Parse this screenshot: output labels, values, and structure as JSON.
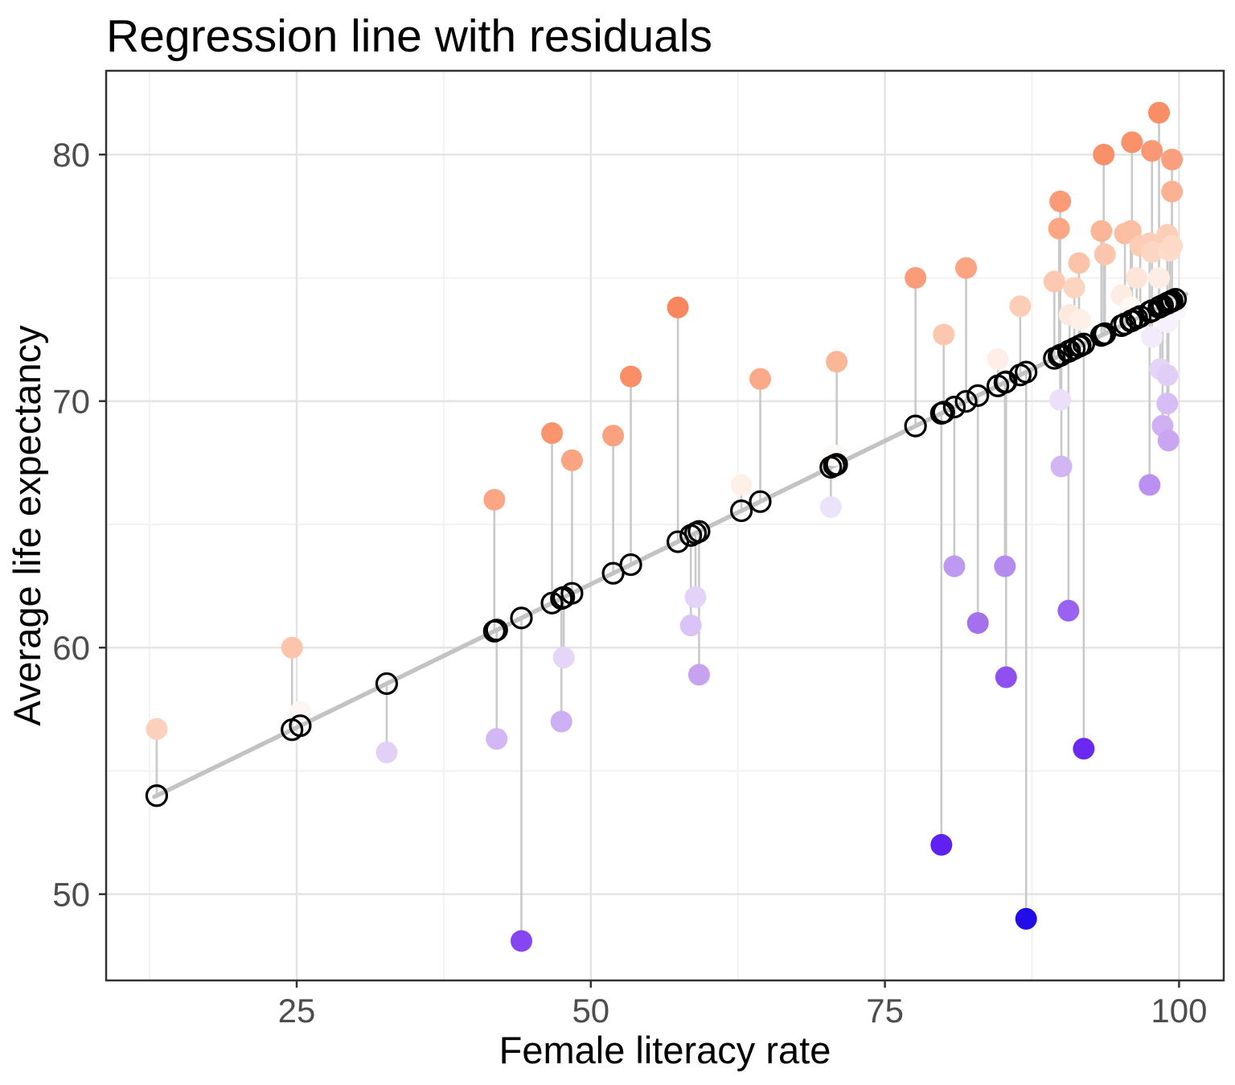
{
  "title": "Regression line with residuals",
  "x_axis": {
    "label": "Female literacy rate",
    "ticks": [
      25,
      50,
      75,
      100
    ],
    "minor_ticks": [
      12.5,
      37.5,
      62.5,
      87.5
    ],
    "range": [
      8.8,
      103.8
    ]
  },
  "y_axis": {
    "label": "Average life expectancy",
    "ticks": [
      50,
      60,
      70,
      80
    ],
    "minor_ticks": [
      55,
      65,
      75
    ],
    "range": [
      46.5,
      83.4
    ]
  },
  "palette": {
    "stem": "#c9c9c9",
    "regression_line": "#c3c3c3",
    "fitted_stroke": "#000000",
    "panel_border": "#333333",
    "grid_major": "#e4e4e4",
    "grid_minor": "#f2f2f2",
    "tick_mark": "#333333",
    "tick_label": "#4d4d4d",
    "residual_scale": [
      [
        -22.5,
        "#1e0be6"
      ],
      [
        -18.0,
        "#5a1dee"
      ],
      [
        -16.5,
        "#6a28f0"
      ],
      [
        -14.0,
        "#7d3cf1"
      ],
      [
        -12.0,
        "#8e50f0"
      ],
      [
        -10.5,
        "#9a62f0"
      ],
      [
        -9.0,
        "#a673ee"
      ],
      [
        -7.5,
        "#b58af0"
      ],
      [
        -6.0,
        "#c4a0f1"
      ],
      [
        -4.5,
        "#d2b6f4"
      ],
      [
        -3.0,
        "#e0cdf7"
      ],
      [
        -2.0,
        "#e9dcf9"
      ],
      [
        -1.0,
        "#f2ecfb"
      ],
      [
        0.0,
        "#ffffff"
      ],
      [
        1.5,
        "#fde8dd"
      ],
      [
        3.0,
        "#fccab1"
      ],
      [
        4.5,
        "#fbb091"
      ],
      [
        6.0,
        "#fa9c79"
      ],
      [
        7.5,
        "#f98e68"
      ],
      [
        9.5,
        "#f8875f"
      ]
    ]
  },
  "chart_data": {
    "type": "scatter",
    "title": "Regression line with residuals",
    "xlabel": "Female literacy rate",
    "ylabel": "Average life expectancy",
    "xlim": [
      8.8,
      103.8
    ],
    "ylim": [
      46.5,
      83.4
    ],
    "grid": true,
    "regression": {
      "intercept": 50.95,
      "slope": 0.2325,
      "x_start": 12.9,
      "x_end": 100.6
    },
    "points": [
      [
        13.1,
        56.7
      ],
      [
        24.6,
        60.0
      ],
      [
        25.3,
        57.4
      ],
      [
        32.65,
        55.75
      ],
      [
        41.8,
        66.0
      ],
      [
        42.0,
        56.3
      ],
      [
        44.1,
        48.1
      ],
      [
        46.7,
        68.7
      ],
      [
        47.5,
        57.0
      ],
      [
        47.7,
        59.6
      ],
      [
        48.4,
        67.6
      ],
      [
        51.9,
        68.6
      ],
      [
        53.4,
        71.0
      ],
      [
        57.4,
        73.8
      ],
      [
        58.5,
        60.9
      ],
      [
        58.9,
        62.05
      ],
      [
        59.2,
        58.9
      ],
      [
        62.8,
        66.6
      ],
      [
        64.4,
        70.9
      ],
      [
        70.4,
        65.7
      ],
      [
        70.7,
        67.8
      ],
      [
        70.9,
        71.6
      ],
      [
        77.6,
        75.0
      ],
      [
        79.8,
        52.0
      ],
      [
        80.0,
        72.7
      ],
      [
        80.9,
        63.3
      ],
      [
        81.9,
        75.4
      ],
      [
        82.9,
        61.0
      ],
      [
        84.6,
        71.7
      ],
      [
        85.2,
        63.3
      ],
      [
        85.3,
        58.8
      ],
      [
        86.5,
        73.85
      ],
      [
        87.0,
        49.0
      ],
      [
        89.4,
        74.85
      ],
      [
        89.8,
        77.0
      ],
      [
        89.9,
        78.1
      ],
      [
        89.9,
        70.05
      ],
      [
        90.0,
        67.35
      ],
      [
        90.6,
        61.5
      ],
      [
        90.7,
        73.5
      ],
      [
        91.1,
        74.6
      ],
      [
        91.5,
        75.6
      ],
      [
        91.6,
        73.3
      ],
      [
        91.9,
        55.9
      ],
      [
        93.4,
        76.9
      ],
      [
        93.6,
        80.0
      ],
      [
        93.7,
        75.95
      ],
      [
        95.1,
        74.3
      ],
      [
        95.4,
        76.8
      ],
      [
        95.9,
        76.9
      ],
      [
        95.9,
        73.8
      ],
      [
        96.0,
        80.5
      ],
      [
        96.4,
        75.0
      ],
      [
        96.7,
        76.3
      ],
      [
        97.5,
        76.4
      ],
      [
        97.5,
        66.6
      ],
      [
        97.7,
        80.15
      ],
      [
        97.7,
        76.05
      ],
      [
        97.7,
        72.6
      ],
      [
        98.3,
        81.7
      ],
      [
        98.3,
        75.0
      ],
      [
        98.4,
        71.3
      ],
      [
        98.6,
        69.0
      ],
      [
        99.0,
        76.75
      ],
      [
        99.0,
        73.2
      ],
      [
        99.0,
        71.05
      ],
      [
        99.0,
        69.9
      ],
      [
        99.1,
        68.4
      ],
      [
        99.2,
        76.1
      ],
      [
        99.4,
        79.8
      ],
      [
        99.4,
        78.5
      ],
      [
        99.4,
        76.3
      ],
      [
        99.7,
        73.7
      ]
    ]
  }
}
